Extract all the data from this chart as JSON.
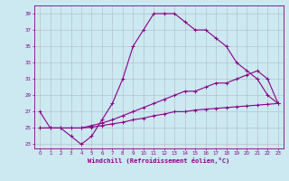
{
  "xlabel": "Windchill (Refroidissement éolien,°C)",
  "background_color": "#cce8f0",
  "line_color": "#880088",
  "grid_color": "#b0b8cc",
  "xlim": [
    -0.5,
    23.5
  ],
  "ylim": [
    22.5,
    40
  ],
  "xticks": [
    0,
    1,
    2,
    3,
    4,
    5,
    6,
    7,
    8,
    9,
    10,
    11,
    12,
    13,
    14,
    15,
    16,
    17,
    18,
    19,
    20,
    21,
    22,
    23
  ],
  "yticks": [
    23,
    25,
    27,
    29,
    31,
    33,
    35,
    37,
    39
  ],
  "line1_x": [
    0,
    1,
    2,
    3,
    4,
    5,
    6,
    7,
    8,
    9,
    10,
    11,
    12,
    13,
    14,
    15,
    16,
    17,
    18,
    19,
    20,
    21,
    22,
    23
  ],
  "line1_y": [
    27,
    25,
    25,
    24,
    23,
    24,
    26,
    28,
    31,
    35,
    37,
    39,
    39,
    39,
    38,
    37,
    37,
    36,
    35,
    33,
    32,
    31,
    29,
    28
  ],
  "line2_x": [
    0,
    1,
    2,
    3,
    4,
    5,
    6,
    7,
    8,
    9,
    10,
    11,
    12,
    13,
    14,
    15,
    16,
    17,
    18,
    19,
    20,
    21,
    22,
    23
  ],
  "line2_y": [
    25,
    25,
    25,
    25,
    25,
    25.3,
    25.6,
    26,
    26.5,
    27,
    27.5,
    28,
    28.5,
    29,
    29.5,
    29.5,
    30,
    30.5,
    30.5,
    31,
    31.5,
    32,
    31,
    28
  ],
  "line3_x": [
    0,
    1,
    2,
    3,
    4,
    5,
    6,
    7,
    8,
    9,
    10,
    11,
    12,
    13,
    14,
    15,
    16,
    17,
    18,
    19,
    20,
    21,
    22,
    23
  ],
  "line3_y": [
    25,
    25,
    25,
    25,
    25,
    25.1,
    25.3,
    25.5,
    25.7,
    26,
    26.2,
    26.5,
    26.7,
    27,
    27,
    27.2,
    27.3,
    27.4,
    27.5,
    27.6,
    27.7,
    27.8,
    27.9,
    28
  ]
}
